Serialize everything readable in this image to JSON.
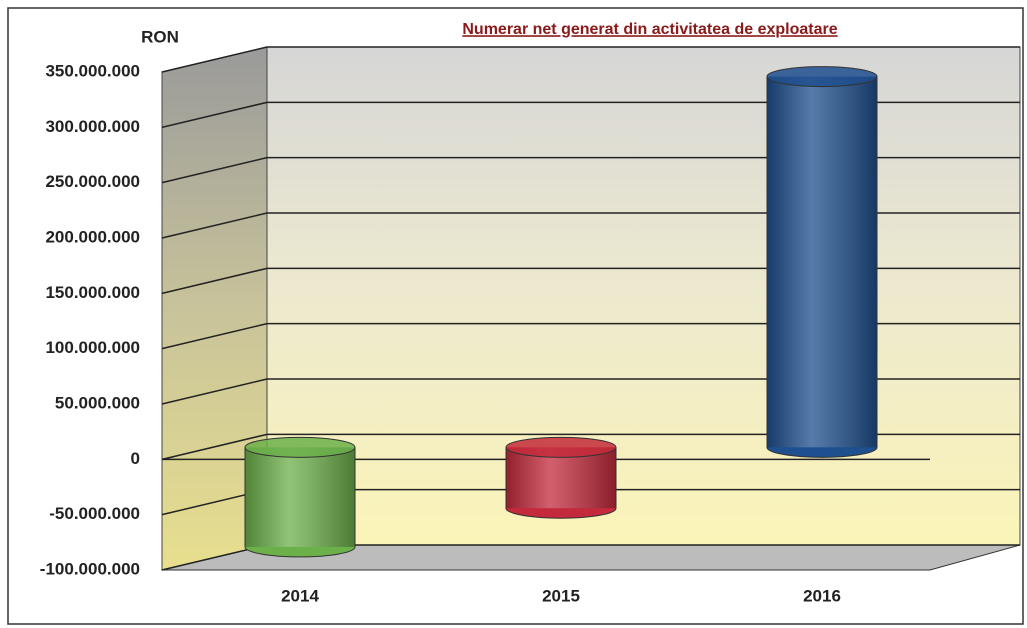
{
  "chart_data": {
    "type": "bar",
    "title": "Numerar net generat din activitatea de exploatare",
    "y_axis_label": "RON",
    "categories": [
      "2014",
      "2015",
      "2016"
    ],
    "values": [
      -90000000,
      -55000000,
      335000000
    ],
    "colors": [
      "#6cb04a",
      "#c42a3b",
      "#1e4f8e"
    ],
    "ylim": [
      -100000000,
      350000000
    ],
    "yticks": [
      {
        "value": -100000000,
        "label": "-100.000.000"
      },
      {
        "value": -50000000,
        "label": "-50.000.000"
      },
      {
        "value": 0,
        "label": "0"
      },
      {
        "value": 50000000,
        "label": "50.000.000"
      },
      {
        "value": 100000000,
        "label": "100.000.000"
      },
      {
        "value": 150000000,
        "label": "150.000.000"
      },
      {
        "value": 200000000,
        "label": "200.000.000"
      },
      {
        "value": 250000000,
        "label": "250.000.000"
      },
      {
        "value": 300000000,
        "label": "300.000.000"
      },
      {
        "value": 350000000,
        "label": "350.000.000"
      }
    ],
    "grid": true
  }
}
